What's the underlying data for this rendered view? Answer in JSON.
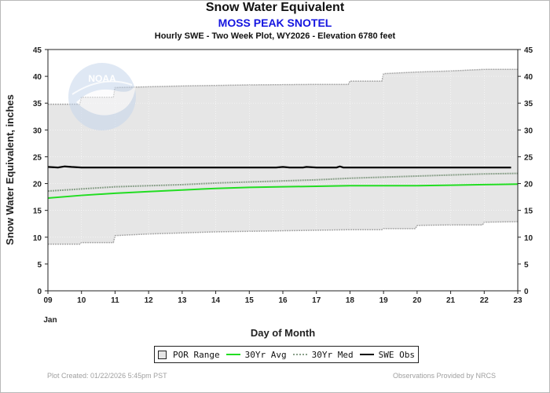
{
  "header": {
    "title": "Snow Water Equivalent",
    "station": "MOSS PEAK SNOTEL",
    "subtitle": "Hourly SWE - Two Week Plot, WY2026 -  Elevation 6780 feet"
  },
  "legend": {
    "por_range": "POR Range",
    "avg30": "30Yr Avg",
    "med30": "30Yr Med",
    "swe_obs": "SWE Obs"
  },
  "footer": {
    "created": "Plot Created: 01/22/2026 5:45pm PST",
    "provider": "Observations Provided by NRCS"
  },
  "logo": {
    "text": "NOAA"
  },
  "colors": {
    "por_fill": "#e6e6e6",
    "por_edge": "#a8a8a8",
    "avg": "#22dd22",
    "med": "#8aa08a",
    "obs": "#000000"
  },
  "chart_data": {
    "type": "line",
    "title": "Snow Water Equivalent",
    "xlabel": "Day of Month",
    "x_sublabel": "Jan",
    "ylabel": "Snow Water Equivalent, inches",
    "xlim": [
      9,
      23
    ],
    "ylim": [
      0,
      45
    ],
    "x_ticks": [
      "09",
      "10",
      "11",
      "12",
      "13",
      "14",
      "15",
      "16",
      "17",
      "18",
      "19",
      "20",
      "21",
      "22",
      "23"
    ],
    "y_ticks": [
      0,
      5,
      10,
      15,
      20,
      25,
      30,
      35,
      40,
      45
    ],
    "grid": true,
    "legend_position": "bottom-center",
    "por_upper": {
      "x": [
        9,
        9.95,
        10.0,
        10.95,
        11.0,
        13.0,
        15.0,
        17.0,
        17.95,
        18.0,
        18.95,
        19.0,
        20.0,
        21.0,
        22.0,
        23.0
      ],
      "y": [
        34.8,
        34.8,
        36.1,
        36.1,
        37.9,
        38.2,
        38.4,
        38.5,
        38.5,
        39.1,
        39.1,
        40.5,
        40.8,
        41.0,
        41.3,
        41.3
      ]
    },
    "por_lower": {
      "x": [
        9,
        9.95,
        10.0,
        10.95,
        11.0,
        12.0,
        13.0,
        14.0,
        15.0,
        16.0,
        17.0,
        18.0,
        18.95,
        19.0,
        19.95,
        20.0,
        21.0,
        21.95,
        22.0,
        23.0
      ],
      "y": [
        8.7,
        8.7,
        9.0,
        9.0,
        10.3,
        10.6,
        10.8,
        11.0,
        11.1,
        11.2,
        11.3,
        11.4,
        11.4,
        11.6,
        11.6,
        12.2,
        12.3,
        12.3,
        12.8,
        12.9
      ]
    },
    "series": [
      {
        "name": "30Yr Avg",
        "x": [
          9,
          10,
          11,
          12,
          13,
          14,
          15,
          16,
          17,
          18,
          19,
          20,
          21,
          22,
          23
        ],
        "y": [
          17.3,
          17.8,
          18.2,
          18.5,
          18.8,
          19.1,
          19.3,
          19.4,
          19.5,
          19.6,
          19.6,
          19.6,
          19.7,
          19.8,
          19.9
        ]
      },
      {
        "name": "30Yr Med",
        "x": [
          9,
          10,
          11,
          12,
          13,
          14,
          15,
          16,
          17,
          18,
          19,
          20,
          21,
          22,
          23
        ],
        "y": [
          18.6,
          19.0,
          19.4,
          19.6,
          19.8,
          20.1,
          20.3,
          20.5,
          20.7,
          21.0,
          21.2,
          21.4,
          21.6,
          21.8,
          21.9
        ]
      },
      {
        "name": "SWE Obs",
        "x": [
          9,
          9.3,
          9.5,
          9.7,
          10.0,
          10.5,
          11.0,
          12.0,
          13.0,
          14.0,
          15.0,
          15.8,
          16.0,
          16.2,
          16.6,
          16.7,
          17.0,
          17.6,
          17.7,
          17.8,
          18.0,
          19.0,
          20.0,
          21.0,
          22.0,
          22.8
        ],
        "y": [
          23.1,
          23.0,
          23.2,
          23.1,
          23.0,
          23.0,
          23.0,
          23.0,
          23.0,
          23.0,
          23.0,
          23.0,
          23.1,
          23.0,
          23.0,
          23.1,
          23.0,
          23.0,
          23.2,
          23.0,
          23.0,
          23.0,
          23.0,
          23.0,
          23.0,
          23.0
        ]
      }
    ]
  }
}
